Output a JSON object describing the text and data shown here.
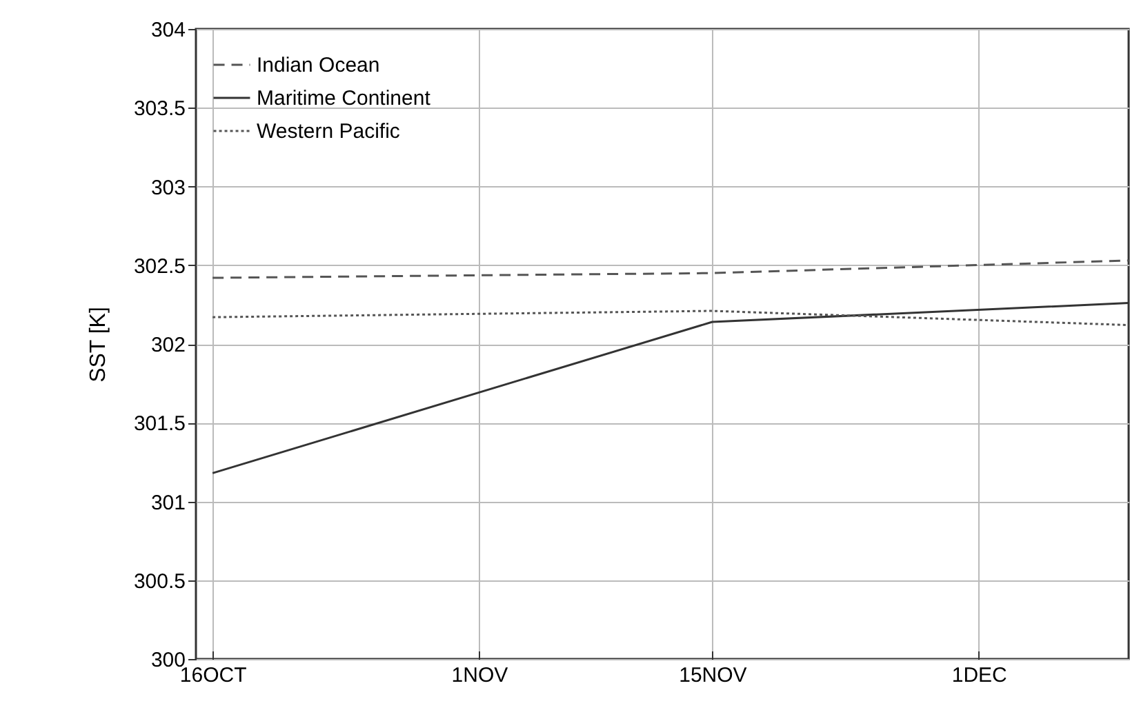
{
  "chart_data": {
    "type": "line",
    "ylabel": "SST [K]",
    "x": [
      "--10-16",
      "--11-15",
      "--12-10"
    ],
    "xlim": [
      "--10-15",
      "--12-10"
    ],
    "xticks": [
      {
        "value": "--10-16",
        "label": "16OCT"
      },
      {
        "value": "--11-01",
        "label": "1NOV"
      },
      {
        "value": "--11-15",
        "label": "15NOV"
      },
      {
        "value": "--12-01",
        "label": "1DEC"
      }
    ],
    "ylim": [
      300,
      304
    ],
    "yticks": [
      300,
      300.5,
      301,
      301.5,
      302,
      302.5,
      303,
      303.5,
      304
    ],
    "grid": true,
    "legend": "top left",
    "series": [
      {
        "name": "Indian Ocean",
        "color": "#555555",
        "line_style": "dashed",
        "values": [
          302.42,
          302.45,
          302.53
        ]
      },
      {
        "name": "Maritime Continent",
        "color": "#333333",
        "line_style": "solid",
        "values": [
          301.18,
          302.14,
          302.26
        ]
      },
      {
        "name": "Western Pacific",
        "color": "#555555",
        "line_style": "dotted",
        "values": [
          302.17,
          302.21,
          302.12
        ]
      }
    ]
  }
}
